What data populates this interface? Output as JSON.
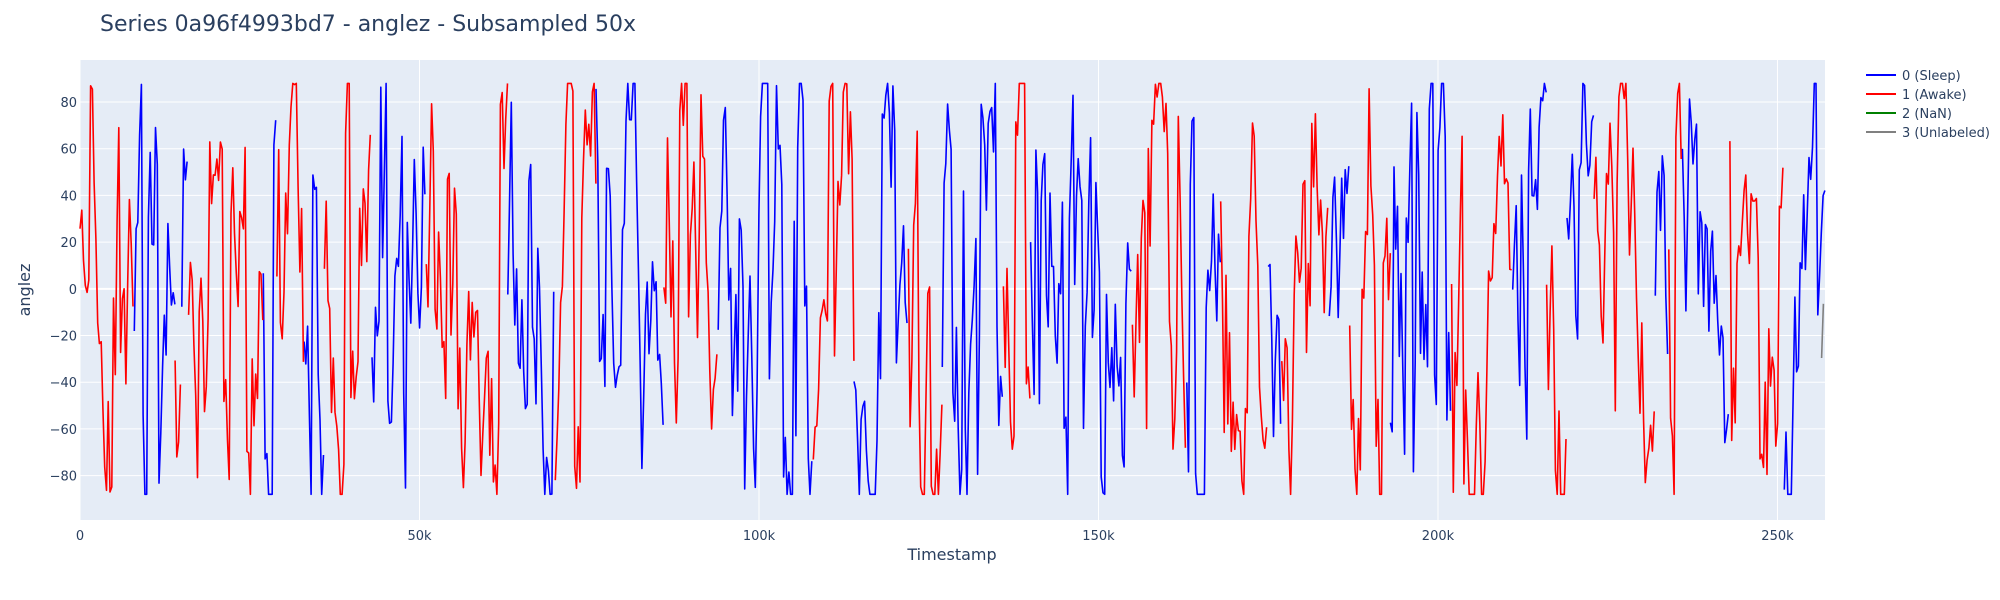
{
  "chart_data": {
    "type": "line",
    "title": "Series 0a96f4993bd7 - anglez - Subsampled 50x",
    "xlabel": "Timestamp",
    "ylabel": "anglez",
    "xlim": [
      0,
      257000
    ],
    "ylim": [
      -99,
      98
    ],
    "x_ticks": [
      0,
      50000,
      100000,
      150000,
      200000,
      250000
    ],
    "x_tick_labels": [
      "0",
      "50k",
      "100k",
      "150k",
      "200k",
      "250k"
    ],
    "y_ticks": [
      -80,
      -60,
      -40,
      -20,
      0,
      20,
      40,
      60,
      80
    ],
    "y_tick_labels": [
      "−80",
      "−60",
      "−40",
      "−20",
      "0",
      "20",
      "40",
      "60",
      "80"
    ],
    "grid": true,
    "legend_position": "top-right-outside",
    "series": [
      {
        "name": "0 (Sleep)",
        "color": "#0000ff",
        "segments": [
          [
            8000,
            14000
          ],
          [
            15000,
            16000
          ],
          [
            27000,
            29000
          ],
          [
            33000,
            36000
          ],
          [
            43000,
            51000
          ],
          [
            63000,
            70000
          ],
          [
            76000,
            86000
          ],
          [
            94000,
            108000
          ],
          [
            114000,
            122000
          ],
          [
            127000,
            136000
          ],
          [
            140000,
            155000
          ],
          [
            163000,
            168000
          ],
          [
            175000,
            177000
          ],
          [
            184000,
            187000
          ],
          [
            193000,
            202000
          ],
          [
            211000,
            216000
          ],
          [
            219000,
            223000
          ],
          [
            232000,
            234000
          ],
          [
            236000,
            243000
          ],
          [
            251000,
            257000
          ]
        ]
      },
      {
        "name": "1 (Awake)",
        "color": "#ff0000",
        "segments": [
          [
            0,
            8000
          ],
          [
            14000,
            15000
          ],
          [
            16000,
            27000
          ],
          [
            29000,
            33000
          ],
          [
            36000,
            43000
          ],
          [
            51000,
            63000
          ],
          [
            70000,
            76000
          ],
          [
            86000,
            94000
          ],
          [
            108000,
            114000
          ],
          [
            122000,
            127000
          ],
          [
            136000,
            140000
          ],
          [
            155000,
            163000
          ],
          [
            168000,
            175000
          ],
          [
            177000,
            184000
          ],
          [
            187000,
            193000
          ],
          [
            202000,
            211000
          ],
          [
            216000,
            219000
          ],
          [
            223000,
            232000
          ],
          [
            234000,
            236000
          ],
          [
            243000,
            251000
          ]
        ]
      },
      {
        "name": "2 (NaN)",
        "color": "#008000",
        "segments": []
      },
      {
        "name": "3 (Unlabeled)",
        "color": "#808080",
        "segments": [
          [
            256500,
            257000
          ]
        ]
      }
    ]
  }
}
